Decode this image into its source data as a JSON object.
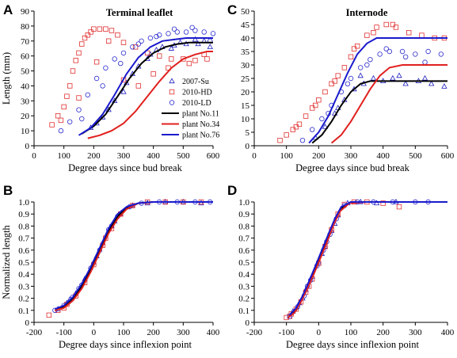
{
  "colors": {
    "series_2007_Su": "#1f1fbf",
    "series_2010_HD": "#e0302f",
    "series_2010_LD": "#2a2acf",
    "plant11": "#000000",
    "plant34": "#e0201e",
    "plant76": "#1a1acc"
  },
  "chart_data": [
    {
      "panel": "A",
      "type": "scatter",
      "title": "Terminal leaflet",
      "xlabel": "Degree days since bud break",
      "ylabel": "Length (mm)",
      "xlim": [
        0,
        600
      ],
      "ylim": [
        0,
        90
      ],
      "xticks": [
        "0",
        "100",
        "200",
        "300",
        "400",
        "500",
        "600"
      ],
      "yticks": [
        "0",
        "10",
        "20",
        "30",
        "40",
        "50",
        "60",
        "70",
        "80",
        "90"
      ],
      "legend": [
        "2007-Su",
        "2010-HD",
        "2010-LD",
        "plant No.11",
        "plant No.34",
        "plant No.76"
      ],
      "legend_position": "bottom-right",
      "series": [
        {
          "name": "plant No.11",
          "kind": "line",
          "x": [
            160,
            200,
            240,
            280,
            320,
            360,
            400,
            440,
            480,
            520,
            560,
            600
          ],
          "y": [
            8,
            13,
            21,
            33,
            45,
            55,
            62,
            66,
            68,
            69,
            69,
            69
          ]
        },
        {
          "name": "plant No.34",
          "kind": "line",
          "x": [
            180,
            220,
            260,
            300,
            340,
            380,
            420,
            460,
            500,
            540,
            580,
            600
          ],
          "y": [
            5,
            7,
            10,
            15,
            23,
            33,
            43,
            52,
            58,
            61,
            63,
            63
          ]
        },
        {
          "name": "plant No.76",
          "kind": "line",
          "x": [
            150,
            190,
            230,
            270,
            310,
            350,
            390,
            430,
            470,
            510,
            560,
            600
          ],
          "y": [
            7,
            12,
            21,
            34,
            48,
            59,
            66,
            70,
            71,
            72,
            72,
            72
          ]
        },
        {
          "name": "2007-Su",
          "kind": "points",
          "x": [
            190,
            230,
            270,
            310,
            350,
            390,
            430,
            470,
            510,
            550,
            590,
            250,
            330,
            410,
            490,
            570,
            210,
            300,
            380,
            460,
            540
          ],
          "y": [
            12,
            19,
            30,
            42,
            53,
            61,
            66,
            67,
            68,
            68,
            66,
            24,
            48,
            64,
            69,
            70,
            15,
            36,
            58,
            65,
            71
          ]
        },
        {
          "name": "2010-HD",
          "kind": "points",
          "x": [
            60,
            80,
            100,
            110,
            120,
            130,
            140,
            150,
            160,
            170,
            180,
            190,
            200,
            220,
            240,
            260,
            280,
            300,
            340,
            380,
            420,
            460,
            500,
            540,
            580,
            90,
            150,
            210,
            250,
            300,
            350,
            400,
            450,
            520,
            570
          ],
          "y": [
            14,
            20,
            26,
            33,
            40,
            50,
            57,
            62,
            68,
            72,
            74,
            76,
            78,
            78,
            78,
            77,
            74,
            69,
            66,
            62,
            60,
            58,
            58,
            57,
            58,
            17,
            32,
            56,
            70,
            44,
            40,
            48,
            52,
            55,
            61
          ]
        },
        {
          "name": "2010-LD",
          "kind": "points",
          "x": [
            90,
            120,
            150,
            180,
            210,
            240,
            270,
            300,
            330,
            360,
            390,
            420,
            450,
            480,
            510,
            540,
            570,
            600,
            160,
            230,
            290,
            350,
            410,
            470,
            530,
            590
          ],
          "y": [
            10,
            16,
            24,
            34,
            45,
            52,
            58,
            62,
            66,
            70,
            72,
            74,
            75,
            76,
            76,
            77,
            76,
            75,
            18,
            40,
            55,
            68,
            73,
            78,
            79,
            70
          ]
        }
      ]
    },
    {
      "panel": "C",
      "type": "scatter",
      "title": "Internode",
      "xlabel": "Degree days since bud break",
      "ylabel": "",
      "xlim": [
        0,
        600
      ],
      "ylim": [
        0,
        50
      ],
      "xticks": [
        "0",
        "100",
        "200",
        "300",
        "400",
        "500",
        "600"
      ],
      "yticks": [
        "0",
        "5",
        "10",
        "15",
        "20",
        "25",
        "30",
        "35",
        "40",
        "45",
        "50"
      ],
      "series": [
        {
          "name": "plant No.11",
          "kind": "line",
          "x": [
            180,
            210,
            240,
            270,
            300,
            330,
            360,
            400,
            600
          ],
          "y": [
            1,
            4,
            9,
            15,
            20,
            23,
            24,
            24,
            24
          ]
        },
        {
          "name": "plant No.34",
          "kind": "line",
          "x": [
            240,
            270,
            300,
            330,
            360,
            390,
            420,
            460,
            600
          ],
          "y": [
            1,
            4,
            9,
            15,
            21,
            26,
            29,
            30,
            30
          ]
        },
        {
          "name": "plant No.76",
          "kind": "line",
          "x": [
            170,
            200,
            230,
            260,
            290,
            320,
            350,
            380,
            600
          ],
          "y": [
            1,
            5,
            11,
            19,
            27,
            34,
            38,
            40,
            40
          ]
        },
        {
          "name": "2007-Su",
          "kind": "points",
          "x": [
            190,
            220,
            250,
            280,
            310,
            340,
            370,
            400,
            430,
            470,
            510,
            550,
            590,
            260,
            330,
            450,
            530
          ],
          "y": [
            3,
            7,
            12,
            17,
            21,
            23,
            25,
            24,
            25,
            23,
            24,
            23,
            22,
            14,
            26,
            26,
            25
          ]
        },
        {
          "name": "2010-HD",
          "kind": "points",
          "x": [
            80,
            100,
            120,
            140,
            160,
            180,
            200,
            220,
            240,
            260,
            280,
            300,
            320,
            350,
            380,
            410,
            440,
            480,
            520,
            560,
            590,
            130,
            190,
            250,
            310,
            370,
            430
          ],
          "y": [
            2,
            4,
            6,
            8,
            11,
            14,
            17,
            20,
            23,
            26,
            29,
            33,
            37,
            41,
            44,
            45,
            44,
            42,
            41,
            40,
            40,
            7,
            15,
            24,
            36,
            42,
            45
          ]
        },
        {
          "name": "2010-LD",
          "kind": "points",
          "x": [
            150,
            180,
            210,
            240,
            270,
            300,
            330,
            360,
            390,
            420,
            460,
            500,
            540,
            580,
            230,
            290,
            350,
            410,
            470,
            530
          ],
          "y": [
            2,
            6,
            10,
            15,
            20,
            25,
            29,
            32,
            34,
            35,
            35,
            34,
            35,
            34,
            12,
            23,
            30,
            36,
            33,
            31
          ]
        }
      ]
    },
    {
      "panel": "B",
      "type": "scatter",
      "title": "",
      "xlabel": "Degree days since inflexion point",
      "ylabel": "Normalized length",
      "xlim": [
        -200,
        400
      ],
      "ylim": [
        0,
        1.0
      ],
      "xticks": [
        "-200",
        "-100",
        "0",
        "100",
        "200",
        "300",
        "400"
      ],
      "yticks": [
        "0",
        "0.1",
        "0.2",
        "0.3",
        "0.4",
        "0.5",
        "0.6",
        "0.7",
        "0.8",
        "0.9",
        "1.0"
      ],
      "series": [
        {
          "name": "plant No.11",
          "kind": "line",
          "x": [
            -130,
            -100,
            -70,
            -40,
            -10,
            20,
            50,
            80,
            110,
            150,
            200,
            300,
            400
          ],
          "y": [
            0.1,
            0.13,
            0.2,
            0.3,
            0.44,
            0.6,
            0.76,
            0.88,
            0.95,
            0.99,
            1.0,
            1.0,
            1.0
          ]
        },
        {
          "name": "plant No.34",
          "kind": "line",
          "x": [
            -130,
            -100,
            -70,
            -40,
            -10,
            20,
            50,
            80,
            110,
            150,
            200,
            300,
            400
          ],
          "y": [
            0.1,
            0.12,
            0.18,
            0.28,
            0.42,
            0.58,
            0.74,
            0.86,
            0.94,
            0.99,
            1.0,
            1.0,
            1.0
          ]
        },
        {
          "name": "plant No.76",
          "kind": "line",
          "x": [
            -130,
            -100,
            -70,
            -40,
            -10,
            20,
            50,
            80,
            110,
            150,
            200,
            300,
            400
          ],
          "y": [
            0.11,
            0.14,
            0.21,
            0.32,
            0.46,
            0.62,
            0.78,
            0.9,
            0.96,
            0.99,
            1.0,
            1.0,
            1.0
          ]
        },
        {
          "name": "2007-Su",
          "kind": "points",
          "x": [
            -120,
            -90,
            -60,
            -30,
            0,
            30,
            60,
            90,
            130,
            180,
            240,
            300,
            360,
            -80,
            10,
            70
          ],
          "y": [
            0.11,
            0.16,
            0.24,
            0.36,
            0.5,
            0.66,
            0.8,
            0.9,
            0.97,
            0.99,
            1.0,
            1.0,
            0.99,
            0.19,
            0.55,
            0.84
          ]
        },
        {
          "name": "2010-HD",
          "kind": "points",
          "x": [
            -150,
            -120,
            -90,
            -60,
            -30,
            0,
            30,
            60,
            90,
            130,
            180,
            240,
            300,
            360,
            -100,
            40
          ],
          "y": [
            0.06,
            0.1,
            0.15,
            0.22,
            0.33,
            0.48,
            0.64,
            0.78,
            0.9,
            0.97,
            1.0,
            1.0,
            1.0,
            1.0,
            0.12,
            0.7
          ]
        },
        {
          "name": "2010-LD",
          "kind": "points",
          "x": [
            -130,
            -100,
            -70,
            -40,
            -10,
            20,
            50,
            80,
            120,
            160,
            220,
            280,
            340,
            390,
            -50,
            60
          ],
          "y": [
            0.1,
            0.14,
            0.21,
            0.31,
            0.45,
            0.6,
            0.77,
            0.88,
            0.96,
            0.99,
            1.0,
            1.0,
            1.0,
            1.0,
            0.28,
            0.8
          ]
        }
      ]
    },
    {
      "panel": "D",
      "type": "scatter",
      "title": "",
      "xlabel": "Degree days since inflexion point",
      "ylabel": "",
      "xlim": [
        -200,
        400
      ],
      "ylim": [
        0,
        1.0
      ],
      "xticks": [
        "-200",
        "-100",
        "0",
        "100",
        "200",
        "300",
        "400"
      ],
      "yticks": [
        "0",
        "0.1",
        "0.2",
        "0.3",
        "0.4",
        "0.5",
        "0.6",
        "0.7",
        "0.8",
        "0.9",
        "1.0"
      ],
      "series": [
        {
          "name": "plant No.11",
          "kind": "line",
          "x": [
            -90,
            -70,
            -50,
            -30,
            -10,
            10,
            30,
            50,
            70,
            100,
            150,
            250,
            400
          ],
          "y": [
            0.05,
            0.1,
            0.2,
            0.32,
            0.44,
            0.57,
            0.7,
            0.84,
            0.95,
            1.0,
            1.0,
            1.0,
            1.0
          ]
        },
        {
          "name": "plant No.34",
          "kind": "line",
          "x": [
            -95,
            -75,
            -55,
            -35,
            -15,
            5,
            25,
            45,
            65,
            95,
            150,
            250,
            400
          ],
          "y": [
            0.04,
            0.08,
            0.17,
            0.28,
            0.4,
            0.53,
            0.66,
            0.8,
            0.92,
            0.99,
            1.0,
            1.0,
            1.0
          ]
        },
        {
          "name": "plant No.76",
          "kind": "line",
          "x": [
            -90,
            -70,
            -50,
            -30,
            -10,
            10,
            30,
            50,
            70,
            100,
            150,
            250,
            400
          ],
          "y": [
            0.06,
            0.12,
            0.22,
            0.34,
            0.47,
            0.6,
            0.73,
            0.86,
            0.96,
            1.0,
            1.0,
            1.0,
            1.0
          ]
        },
        {
          "name": "2007-Su",
          "kind": "points",
          "x": [
            -80,
            -60,
            -40,
            -20,
            0,
            20,
            40,
            60,
            90,
            130,
            180,
            240,
            -50,
            10,
            50
          ],
          "y": [
            0.09,
            0.16,
            0.27,
            0.38,
            0.5,
            0.63,
            0.76,
            0.89,
            0.99,
            1.0,
            0.99,
            1.0,
            0.2,
            0.57,
            0.82
          ]
        },
        {
          "name": "2010-HD",
          "kind": "points",
          "x": [
            -100,
            -85,
            -70,
            -55,
            -40,
            -20,
            0,
            20,
            40,
            60,
            80,
            110,
            150,
            200,
            250,
            -90,
            -30
          ],
          "y": [
            0.04,
            0.07,
            0.11,
            0.17,
            0.25,
            0.36,
            0.49,
            0.63,
            0.77,
            0.9,
            0.98,
            1.0,
            1.0,
            0.99,
            0.96,
            0.05,
            0.3
          ]
        },
        {
          "name": "2010-LD",
          "kind": "points",
          "x": [
            -90,
            -65,
            -45,
            -25,
            -5,
            15,
            35,
            55,
            80,
            120,
            170,
            230,
            300,
            340,
            -35,
            25
          ],
          "y": [
            0.05,
            0.13,
            0.22,
            0.35,
            0.47,
            0.6,
            0.73,
            0.86,
            0.97,
            1.0,
            1.0,
            1.0,
            1.0,
            1.0,
            0.3,
            0.67
          ]
        }
      ]
    }
  ]
}
